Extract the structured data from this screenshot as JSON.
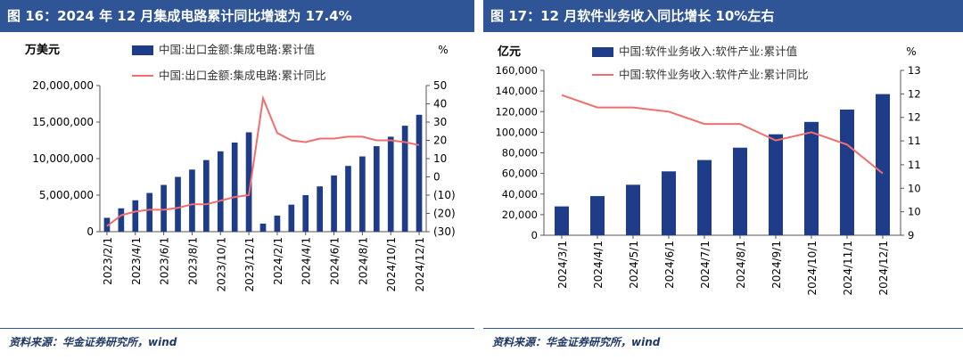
{
  "chart_data": [
    {
      "type": "bar+line",
      "title": "图 16：2024 年 12 月集成电路累计同比增速为 17.4%",
      "left_unit": "万美元",
      "right_unit": "%",
      "categories": [
        "2023/2/1",
        "2023/3/1",
        "2023/4/1",
        "2023/5/1",
        "2023/6/1",
        "2023/7/1",
        "2023/8/1",
        "2023/9/1",
        "2023/10/1",
        "2023/11/1",
        "2023/12/1",
        "2024/1/1",
        "2024/2/1",
        "2024/3/1",
        "2024/4/1",
        "2024/5/1",
        "2024/6/1",
        "2024/7/1",
        "2024/8/1",
        "2024/9/1",
        "2024/10/1",
        "2024/11/1",
        "2024/12/1"
      ],
      "x_tick_labels": [
        "2023/2/1",
        "2023/4/1",
        "2023/6/1",
        "2023/8/1",
        "2023/10/1",
        "2023/12/1",
        "2024/2/1",
        "2024/4/1",
        "2024/6/1",
        "2024/8/1",
        "2024/10/1",
        "2024/12/1"
      ],
      "series": [
        {
          "name": "中国:出口金额:集成电路:累计值",
          "type": "bar",
          "axis": "left",
          "color": "#1f3c88",
          "values": [
            1900000,
            3200000,
            4300000,
            5300000,
            6400000,
            7500000,
            8500000,
            9800000,
            11000000,
            12200000,
            13600000,
            1100000,
            2200000,
            3700000,
            5000000,
            6200000,
            7700000,
            9000000,
            10300000,
            11700000,
            13000000,
            14500000,
            16000000
          ]
        },
        {
          "name": "中国:出口金额:集成电路:累计同比",
          "type": "line",
          "axis": "right",
          "color": "#f06e6e",
          "values": [
            -27,
            -21,
            -19,
            -18,
            -18,
            -17,
            -15,
            -15,
            -13,
            -11,
            -10,
            43,
            24,
            20,
            19,
            21,
            21,
            22,
            22,
            20,
            20,
            19,
            17.4
          ]
        }
      ],
      "left_ylim": [
        0,
        20000000
      ],
      "left_ticks": [
        "0",
        "5,000,000",
        "10,000,000",
        "15,000,000",
        "20,000,000"
      ],
      "left_tick_values": [
        0,
        5000000,
        10000000,
        15000000,
        20000000
      ],
      "right_ylim": [
        -30,
        50
      ],
      "right_ticks": [
        "(30)",
        "(20)",
        "(10)",
        "0",
        "10",
        "20",
        "30",
        "40",
        "50"
      ],
      "right_tick_values": [
        -30,
        -20,
        -10,
        0,
        10,
        20,
        30,
        40,
        50
      ],
      "legend": "top"
    },
    {
      "type": "bar+line",
      "title": "图 17：12 月软件业务收入同比增长 10%左右",
      "left_unit": "亿元",
      "right_unit": "%",
      "categories": [
        "2024/3/1",
        "2024/4/1",
        "2024/5/1",
        "2024/6/1",
        "2024/7/1",
        "2024/8/1",
        "2024/9/1",
        "2024/10/1",
        "2024/11/1",
        "2024/12/1"
      ],
      "x_tick_labels": [
        "2024/3/1",
        "2024/4/1",
        "2024/5/1",
        "2024/6/1",
        "2024/7/1",
        "2024/8/1",
        "2024/9/1",
        "2024/10/1",
        "2024/11/1",
        "2024/12/1"
      ],
      "series": [
        {
          "name": "中国:软件业务收入:软件产业:累计值",
          "type": "bar",
          "axis": "left",
          "color": "#1f3c88",
          "values": [
            28000,
            38000,
            49000,
            62000,
            73000,
            85000,
            98000,
            110000,
            122000,
            137000
          ]
        },
        {
          "name": "中国:软件业务收入:软件产业:累计同比",
          "type": "line",
          "axis": "right",
          "color": "#f06e6e",
          "values": [
            12.4,
            12.1,
            12.1,
            12.0,
            11.7,
            11.7,
            11.3,
            11.5,
            11.2,
            10.5
          ]
        }
      ],
      "left_ylim": [
        0,
        160000
      ],
      "left_ticks": [
        "0",
        "20,000",
        "40,000",
        "60,000",
        "80,000",
        "100,000",
        "120,000",
        "140,000",
        "160,000"
      ],
      "left_tick_values": [
        0,
        20000,
        40000,
        60000,
        80000,
        100000,
        120000,
        140000,
        160000
      ],
      "right_ylim": [
        9,
        13
      ],
      "right_ticks": [
        "9",
        "10",
        "10",
        "11",
        "11",
        "12",
        "12",
        "13"
      ],
      "right_tick_values": [
        9,
        9.57,
        10.14,
        10.71,
        11.29,
        11.86,
        12.43,
        13
      ],
      "legend": "top"
    }
  ],
  "source": "资料来源：华金证券研究所，wind"
}
